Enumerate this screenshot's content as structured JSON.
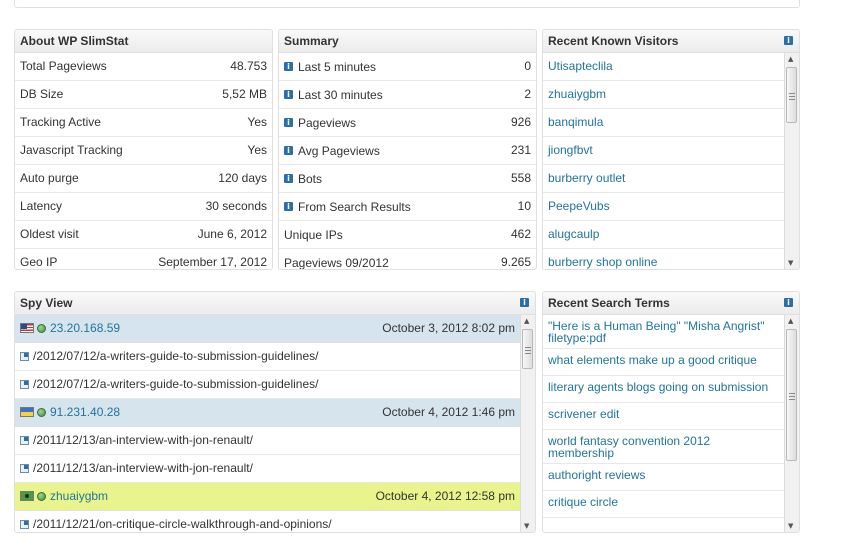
{
  "about": {
    "title": "About WP SlimStat",
    "rows": [
      {
        "label": "Total Pageviews",
        "value": "48.753"
      },
      {
        "label": "DB Size",
        "value": "5,52 MB"
      },
      {
        "label": "Tracking Active",
        "value": "Yes"
      },
      {
        "label": "Javascript Tracking",
        "value": "Yes"
      },
      {
        "label": "Auto purge",
        "value": "120 days"
      },
      {
        "label": "Latency",
        "value": "30 seconds"
      },
      {
        "label": "Oldest visit",
        "value": "June 6, 2012"
      },
      {
        "label": "Geo IP",
        "value": "September 17, 2012"
      }
    ]
  },
  "summary": {
    "title": "Summary",
    "rows": [
      {
        "label": "Last 5 minutes",
        "value": "0",
        "info": true
      },
      {
        "label": "Last 30 minutes",
        "value": "2",
        "info": true
      },
      {
        "label": "Pageviews",
        "value": "926",
        "info": true
      },
      {
        "label": "Avg Pageviews",
        "value": "231",
        "info": true
      },
      {
        "label": "Bots",
        "value": "558",
        "info": true
      },
      {
        "label": "From Search Results",
        "value": "10",
        "info": true
      },
      {
        "label": "Unique IPs",
        "value": "462",
        "info": false
      },
      {
        "label": "Pageviews 09/2012",
        "value": "9.265",
        "info": false
      }
    ]
  },
  "visitors": {
    "title": "Recent Known Visitors",
    "info_glyph": "i",
    "items": [
      "Utisapteclila",
      "zhuaiygbm",
      "banqimula",
      "jiongfbvt",
      "burberry outlet",
      "PeepeVubs",
      "alugcaulp",
      "burberry shop online"
    ]
  },
  "spy": {
    "title": "Spy View",
    "info_glyph": "i",
    "groups": [
      {
        "flag": "us",
        "ip": "23.20.168.59",
        "date": "October 3, 2012 8:02 pm",
        "highlight": false,
        "paths": [
          "/2012/07/12/a-writers-guide-to-submission-guidelines/",
          "/2012/07/12/a-writers-guide-to-submission-guidelines/"
        ]
      },
      {
        "flag": "ua",
        "ip": "91.231.40.28",
        "date": "October 4, 2012 1:46 pm",
        "highlight": false,
        "paths": [
          "/2011/12/13/an-interview-with-jon-renault/",
          "/2011/12/13/an-interview-with-jon-renault/"
        ]
      },
      {
        "flag": "user",
        "ip": "zhuaiygbm",
        "date": "October 4, 2012 12:58 pm",
        "highlight": true,
        "paths": [
          "/2011/12/21/on-critique-circle-walkthrough-and-opinions/"
        ]
      }
    ]
  },
  "search_terms": {
    "title": "Recent Search Terms",
    "info_glyph": "i",
    "items": [
      "\"Here is a Human Being\" \"Misha Angrist\" filetype:pdf",
      "what elements make up a good critique",
      "literary agents blogs going on submission",
      "scrivener edit",
      "world fantasy convention 2012 membership",
      "authoright reviews",
      "critique circle"
    ]
  }
}
